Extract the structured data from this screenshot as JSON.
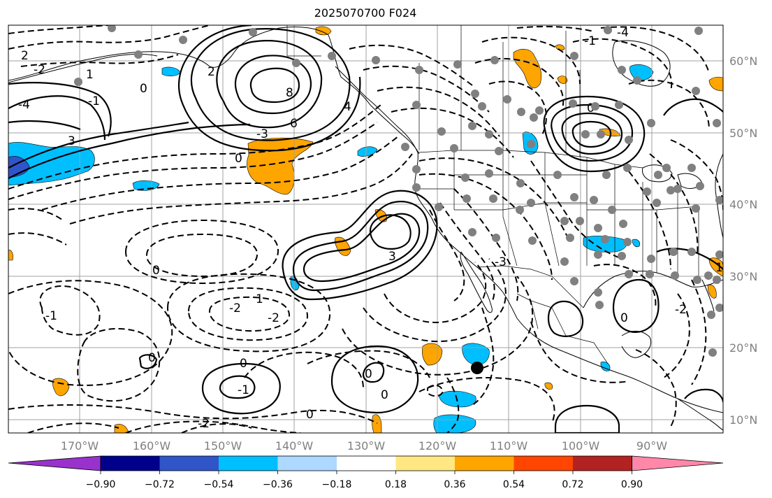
{
  "title": "2025070700 F024",
  "map": {
    "projection": "PlateCarree",
    "lon_range": [
      -180,
      -80
    ],
    "lat_range": [
      8,
      65
    ],
    "lat_labels": [
      "60°N",
      "50°N",
      "40°N",
      "30°N",
      "20°N",
      "10°N"
    ],
    "lat_values": [
      60,
      50,
      40,
      30,
      20,
      10
    ],
    "lon_labels": [
      "170°W",
      "160°W",
      "150°W",
      "140°W",
      "130°W",
      "120°W",
      "110°W",
      "100°W",
      "90°W"
    ],
    "lon_values": [
      -170,
      -160,
      -150,
      -140,
      -130,
      -120,
      -110,
      -100,
      -90
    ],
    "gridlines": true,
    "gridline_color": "#a0a0a0",
    "tick_label_color": "#808080",
    "contour_labels": [
      "2",
      "1",
      "0",
      "-2",
      "-1",
      "-4",
      "3",
      "6",
      "8",
      "2",
      "4",
      "0",
      "-3",
      "3",
      "-2",
      "-2",
      "0",
      "1",
      "-1",
      "0",
      "0",
      "-1",
      "0",
      "0",
      "0",
      "-2",
      "-3",
      "-1",
      "-4",
      "0",
      "1",
      "-2",
      "0"
    ],
    "station_dot_color": "#808080",
    "marker_color": "#000000"
  },
  "colorbar": {
    "ticks": [
      "−0.90",
      "−0.72",
      "−0.54",
      "−0.36",
      "−0.18",
      "0.18",
      "0.36",
      "0.54",
      "0.72",
      "0.90"
    ],
    "colors": [
      "#9932cc",
      "#00008b",
      "#3055c8",
      "#00bfff",
      "#add8ff",
      "#ffffff",
      "#ffe882",
      "#ffa500",
      "#ff4500",
      "#b22222",
      "#ff88aa"
    ]
  }
}
